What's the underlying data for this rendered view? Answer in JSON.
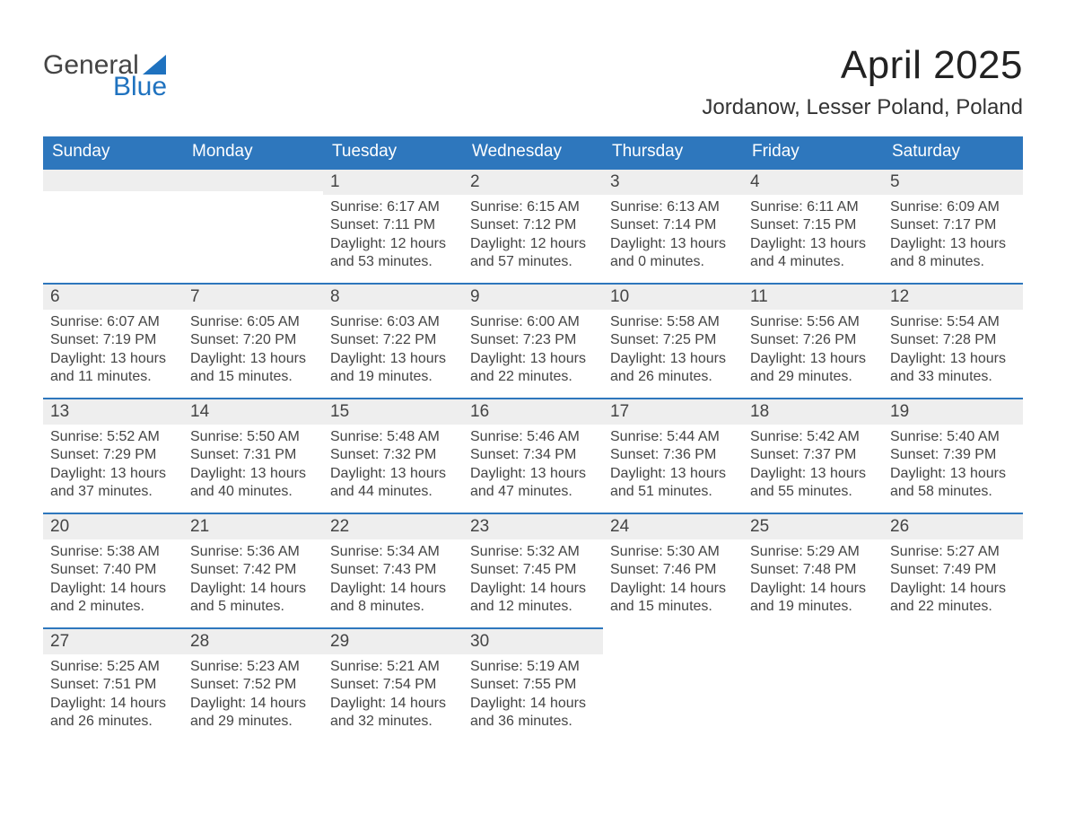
{
  "logo": {
    "word1": "General",
    "word2": "Blue"
  },
  "title": "April 2025",
  "location": "Jordanow, Lesser Poland, Poland",
  "calendar": {
    "header_bg": "#2e77bd",
    "header_text_color": "#ffffff",
    "daynum_bg": "#eeeeee",
    "daynum_border_top": "#2e77bd",
    "text_color": "#444444",
    "days_of_week": [
      "Sunday",
      "Monday",
      "Tuesday",
      "Wednesday",
      "Thursday",
      "Friday",
      "Saturday"
    ],
    "weeks": [
      [
        null,
        null,
        {
          "n": "1",
          "sunrise": "6:17 AM",
          "sunset": "7:11 PM",
          "daylight": "12 hours and 53 minutes."
        },
        {
          "n": "2",
          "sunrise": "6:15 AM",
          "sunset": "7:12 PM",
          "daylight": "12 hours and 57 minutes."
        },
        {
          "n": "3",
          "sunrise": "6:13 AM",
          "sunset": "7:14 PM",
          "daylight": "13 hours and 0 minutes."
        },
        {
          "n": "4",
          "sunrise": "6:11 AM",
          "sunset": "7:15 PM",
          "daylight": "13 hours and 4 minutes."
        },
        {
          "n": "5",
          "sunrise": "6:09 AM",
          "sunset": "7:17 PM",
          "daylight": "13 hours and 8 minutes."
        }
      ],
      [
        {
          "n": "6",
          "sunrise": "6:07 AM",
          "sunset": "7:19 PM",
          "daylight": "13 hours and 11 minutes."
        },
        {
          "n": "7",
          "sunrise": "6:05 AM",
          "sunset": "7:20 PM",
          "daylight": "13 hours and 15 minutes."
        },
        {
          "n": "8",
          "sunrise": "6:03 AM",
          "sunset": "7:22 PM",
          "daylight": "13 hours and 19 minutes."
        },
        {
          "n": "9",
          "sunrise": "6:00 AM",
          "sunset": "7:23 PM",
          "daylight": "13 hours and 22 minutes."
        },
        {
          "n": "10",
          "sunrise": "5:58 AM",
          "sunset": "7:25 PM",
          "daylight": "13 hours and 26 minutes."
        },
        {
          "n": "11",
          "sunrise": "5:56 AM",
          "sunset": "7:26 PM",
          "daylight": "13 hours and 29 minutes."
        },
        {
          "n": "12",
          "sunrise": "5:54 AM",
          "sunset": "7:28 PM",
          "daylight": "13 hours and 33 minutes."
        }
      ],
      [
        {
          "n": "13",
          "sunrise": "5:52 AM",
          "sunset": "7:29 PM",
          "daylight": "13 hours and 37 minutes."
        },
        {
          "n": "14",
          "sunrise": "5:50 AM",
          "sunset": "7:31 PM",
          "daylight": "13 hours and 40 minutes."
        },
        {
          "n": "15",
          "sunrise": "5:48 AM",
          "sunset": "7:32 PM",
          "daylight": "13 hours and 44 minutes."
        },
        {
          "n": "16",
          "sunrise": "5:46 AM",
          "sunset": "7:34 PM",
          "daylight": "13 hours and 47 minutes."
        },
        {
          "n": "17",
          "sunrise": "5:44 AM",
          "sunset": "7:36 PM",
          "daylight": "13 hours and 51 minutes."
        },
        {
          "n": "18",
          "sunrise": "5:42 AM",
          "sunset": "7:37 PM",
          "daylight": "13 hours and 55 minutes."
        },
        {
          "n": "19",
          "sunrise": "5:40 AM",
          "sunset": "7:39 PM",
          "daylight": "13 hours and 58 minutes."
        }
      ],
      [
        {
          "n": "20",
          "sunrise": "5:38 AM",
          "sunset": "7:40 PM",
          "daylight": "14 hours and 2 minutes."
        },
        {
          "n": "21",
          "sunrise": "5:36 AM",
          "sunset": "7:42 PM",
          "daylight": "14 hours and 5 minutes."
        },
        {
          "n": "22",
          "sunrise": "5:34 AM",
          "sunset": "7:43 PM",
          "daylight": "14 hours and 8 minutes."
        },
        {
          "n": "23",
          "sunrise": "5:32 AM",
          "sunset": "7:45 PM",
          "daylight": "14 hours and 12 minutes."
        },
        {
          "n": "24",
          "sunrise": "5:30 AM",
          "sunset": "7:46 PM",
          "daylight": "14 hours and 15 minutes."
        },
        {
          "n": "25",
          "sunrise": "5:29 AM",
          "sunset": "7:48 PM",
          "daylight": "14 hours and 19 minutes."
        },
        {
          "n": "26",
          "sunrise": "5:27 AM",
          "sunset": "7:49 PM",
          "daylight": "14 hours and 22 minutes."
        }
      ],
      [
        {
          "n": "27",
          "sunrise": "5:25 AM",
          "sunset": "7:51 PM",
          "daylight": "14 hours and 26 minutes."
        },
        {
          "n": "28",
          "sunrise": "5:23 AM",
          "sunset": "7:52 PM",
          "daylight": "14 hours and 29 minutes."
        },
        {
          "n": "29",
          "sunrise": "5:21 AM",
          "sunset": "7:54 PM",
          "daylight": "14 hours and 32 minutes."
        },
        {
          "n": "30",
          "sunrise": "5:19 AM",
          "sunset": "7:55 PM",
          "daylight": "14 hours and 36 minutes."
        },
        null,
        null,
        null
      ]
    ],
    "labels": {
      "sunrise": "Sunrise:",
      "sunset": "Sunset:",
      "daylight": "Daylight:"
    }
  }
}
